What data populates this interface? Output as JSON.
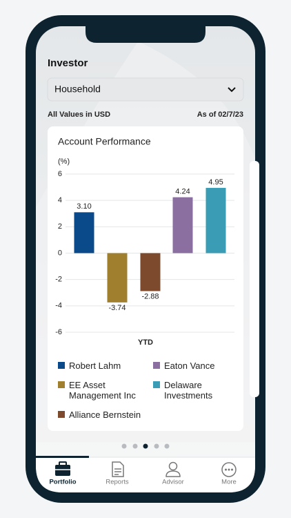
{
  "header": {
    "title": "Investor",
    "dropdown": "Household",
    "currency_note": "All Values in USD",
    "date_note": "As of 02/7/23"
  },
  "chart_data": {
    "type": "bar",
    "title": "Account Performance",
    "y_label": "(%)",
    "x_label": "YTD",
    "categories": [
      "Robert Lahm",
      "EE Asset Management Inc",
      "Alliance Bernstein",
      "Eaton Vance",
      "Delaware Investments"
    ],
    "values": [
      3.1,
      -3.74,
      -2.88,
      4.24,
      4.95
    ],
    "value_labels": [
      "3.10",
      "-3.74",
      "-2.88",
      "4.24",
      "4.95"
    ],
    "colors": [
      "#0b4a8a",
      "#a07f2e",
      "#7d4a2e",
      "#8a6fa0",
      "#3a9db5"
    ],
    "ylim": [
      -6,
      6
    ],
    "yticks": [
      -6,
      -4,
      -2,
      0,
      2,
      4,
      6
    ],
    "grid": true
  },
  "nav": [
    "Portfolio",
    "Reports",
    "Advisor",
    "More"
  ]
}
